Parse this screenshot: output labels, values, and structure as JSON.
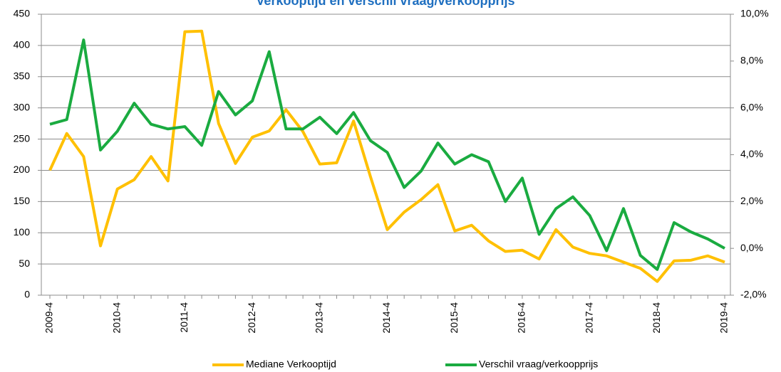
{
  "chart_data": {
    "type": "line",
    "title": "Verkooptijd en verschil vraag/verkoopprijs",
    "categories": [
      "2009-4",
      null,
      null,
      null,
      "2010-4",
      null,
      null,
      null,
      "2011-4",
      null,
      null,
      null,
      "2012-4",
      null,
      null,
      null,
      "2013-4",
      null,
      null,
      null,
      "2014-4",
      null,
      null,
      null,
      "2015-4",
      null,
      null,
      null,
      "2016-4",
      null,
      null,
      null,
      "2017-4",
      null,
      null,
      null,
      "2018-4",
      null,
      null,
      null,
      "2019-4"
    ],
    "ylim": [
      0,
      450
    ],
    "yticks": [
      0,
      50,
      100,
      150,
      200,
      250,
      300,
      350,
      400,
      450
    ],
    "y2lim": [
      -2,
      10
    ],
    "y2ticks": [
      {
        "value": -2,
        "label": "-2,0%"
      },
      {
        "value": 0,
        "label": "0,0%"
      },
      {
        "value": 2,
        "label": "2,0%"
      },
      {
        "value": 4,
        "label": "4,0%"
      },
      {
        "value": 6,
        "label": "6,0%"
      },
      {
        "value": 8,
        "label": "8,0%"
      },
      {
        "value": 10,
        "label": "10,0%"
      }
    ],
    "grid": true,
    "legend": "bottom",
    "series": [
      {
        "name": "Mediane Verkooptijd",
        "color": "#ffc000",
        "values": [
          200,
          259,
          222,
          79,
          170,
          185,
          222,
          183,
          422,
          423,
          275,
          211,
          253,
          263,
          297,
          262,
          210,
          212,
          279,
          190,
          105,
          133,
          153,
          177,
          103,
          112,
          87,
          70,
          72,
          58,
          105,
          77,
          67,
          63,
          53,
          43,
          22,
          55,
          56,
          63,
          53
        ]
      },
      {
        "name": "Verschil vraag/verkoopprijs",
        "color": "#1aab40",
        "axis": "y2",
        "values": [
          5.3,
          5.5,
          8.9,
          4.2,
          5.0,
          6.2,
          5.3,
          5.1,
          5.2,
          4.4,
          6.7,
          5.7,
          6.3,
          8.4,
          5.1,
          5.1,
          5.6,
          4.9,
          5.8,
          4.6,
          4.1,
          2.6,
          3.3,
          4.5,
          3.6,
          4.0,
          3.7,
          2.0,
          3.0,
          0.6,
          1.7,
          2.2,
          1.4,
          -0.1,
          1.7,
          -0.3,
          -0.9,
          1.1,
          0.7,
          0.4,
          0.0
        ]
      }
    ]
  }
}
